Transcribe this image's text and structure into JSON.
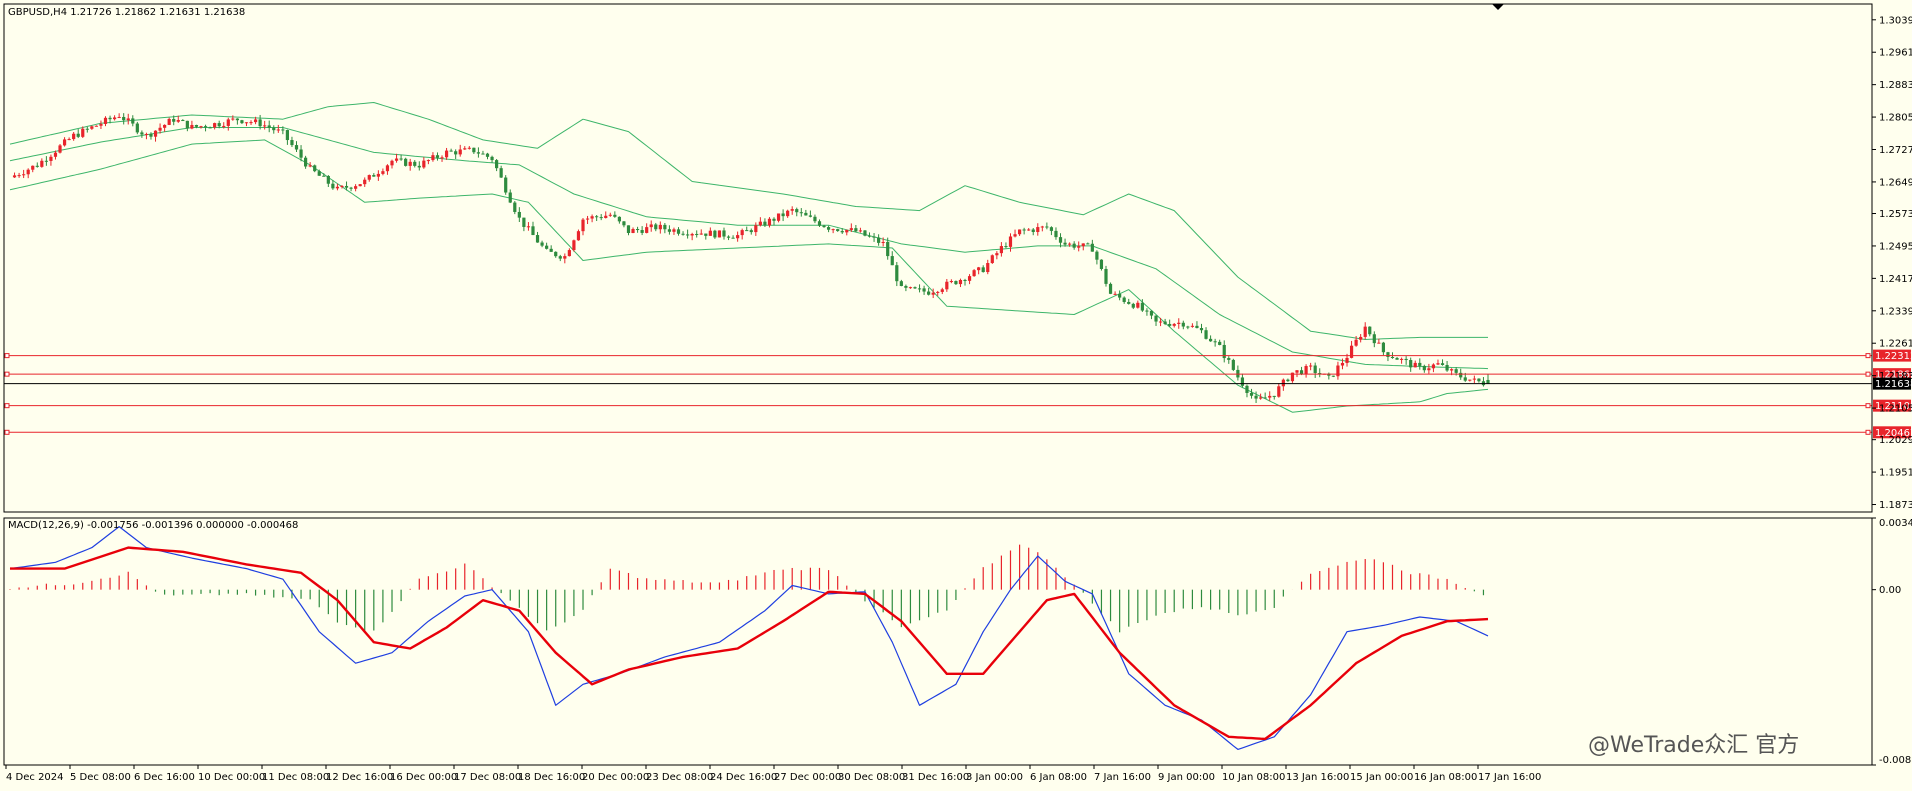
{
  "symbol_header": "GBPUSD,H4  1.21726 1.21862 1.21631 1.21638",
  "macd_header": "MACD(12,26,9) -0.001756 -0.001396 0.000000 -0.000468",
  "watermark": "@WeTrade众汇 官方",
  "colors": {
    "background": "#FFFFEE",
    "bull": "#E8242B",
    "bear": "#2E8B3E",
    "bands": "#3DB56A",
    "level": "#E8242B",
    "current": "#000000",
    "macd_line": "#1F3FE0",
    "signal_line": "#E8000A",
    "hist_pos": "#E8242B",
    "hist_neg": "#2E8B3E"
  },
  "price_axis_ticks": [
    "1.30390",
    "1.29610",
    "1.28830",
    "1.28050",
    "1.27270",
    "1.26490",
    "1.25730",
    "1.24950",
    "1.24170",
    "1.23390",
    "1.22610",
    "1.21830",
    "1.21050",
    "1.20290",
    "1.19510",
    "1.18730"
  ],
  "macd_axis_ticks": [
    "0.003409",
    "0.00",
    "-0.00834"
  ],
  "time_axis_labels": [
    "4 Dec 2024",
    "5 Dec 08:00",
    "6 Dec 16:00",
    "10 Dec 00:00",
    "11 Dec 08:00",
    "12 Dec 16:00",
    "16 Dec 00:00",
    "17 Dec 08:00",
    "18 Dec 16:00",
    "20 Dec 00:00",
    "23 Dec 08:00",
    "24 Dec 16:00",
    "27 Dec 00:00",
    "30 Dec 08:00",
    "31 Dec 16:00",
    "3 Jan 00:00",
    "6 Jan 08:00",
    "7 Jan 16:00",
    "9 Jan 00:00",
    "10 Jan 08:00",
    "13 Jan 16:00",
    "15 Jan 00:00",
    "16 Jan 08:00",
    "17 Jan 16:00"
  ],
  "level_labels": [
    "1.22312",
    "1.21866",
    "1.21108",
    "1.20467"
  ],
  "current_price_label": "1.21638",
  "chart_data": {
    "type": "candlestick",
    "symbol": "GBPUSD",
    "timeframe": "H4",
    "ohlc_last": {
      "open": 1.21726,
      "high": 1.21862,
      "low": 1.21631,
      "close": 1.21638
    },
    "ylim": [
      1.1855,
      1.3077
    ],
    "horizontal_levels": [
      1.22312,
      1.21866,
      1.21108,
      1.20467
    ],
    "current_price": 1.21638,
    "close_path": [
      [
        0,
        1.266
      ],
      [
        6,
        1.269
      ],
      [
        14,
        1.276
      ],
      [
        20,
        1.279
      ],
      [
        24,
        1.281
      ],
      [
        30,
        1.276
      ],
      [
        36,
        1.28
      ],
      [
        40,
        1.278
      ],
      [
        46,
        1.279
      ],
      [
        50,
        1.28
      ],
      [
        55,
        1.279
      ],
      [
        60,
        1.2765
      ],
      [
        66,
        1.268
      ],
      [
        72,
        1.263
      ],
      [
        78,
        1.265
      ],
      [
        84,
        1.27
      ],
      [
        90,
        1.269
      ],
      [
        96,
        1.272
      ],
      [
        102,
        1.2725
      ],
      [
        106,
        1.2705
      ],
      [
        112,
        1.256
      ],
      [
        118,
        1.248
      ],
      [
        122,
        1.247
      ],
      [
        126,
        1.256
      ],
      [
        132,
        1.257
      ],
      [
        136,
        1.253
      ],
      [
        142,
        1.254
      ],
      [
        148,
        1.253
      ],
      [
        154,
        1.2525
      ],
      [
        160,
        1.252
      ],
      [
        166,
        1.255
      ],
      [
        172,
        1.258
      ],
      [
        176,
        1.256
      ],
      [
        180,
        1.254
      ],
      [
        186,
        1.253
      ],
      [
        192,
        1.25
      ],
      [
        196,
        1.239
      ],
      [
        202,
        1.2385
      ],
      [
        208,
        1.241
      ],
      [
        214,
        1.244
      ],
      [
        218,
        1.249
      ],
      [
        222,
        1.253
      ],
      [
        228,
        1.254
      ],
      [
        232,
        1.25
      ],
      [
        238,
        1.249
      ],
      [
        242,
        1.238
      ],
      [
        248,
        1.235
      ],
      [
        252,
        1.231
      ],
      [
        258,
        1.231
      ],
      [
        262,
        1.229
      ],
      [
        266,
        1.225
      ],
      [
        270,
        1.218
      ],
      [
        274,
        1.212
      ],
      [
        278,
        1.214
      ],
      [
        282,
        1.219
      ],
      [
        286,
        1.22
      ],
      [
        290,
        1.2175
      ],
      [
        294,
        1.223
      ],
      [
        298,
        1.23
      ],
      [
        302,
        1.224
      ],
      [
        306,
        1.222
      ],
      [
        310,
        1.22
      ],
      [
        314,
        1.221
      ],
      [
        318,
        1.2185
      ],
      [
        322,
        1.217
      ],
      [
        325,
        1.21638
      ]
    ],
    "bollinger_upper_path": [
      [
        0,
        1.274
      ],
      [
        20,
        1.279
      ],
      [
        40,
        1.281
      ],
      [
        60,
        1.28
      ],
      [
        70,
        1.283
      ],
      [
        80,
        1.284
      ],
      [
        92,
        1.28
      ],
      [
        104,
        1.275
      ],
      [
        116,
        1.273
      ],
      [
        126,
        1.28
      ],
      [
        136,
        1.277
      ],
      [
        150,
        1.265
      ],
      [
        170,
        1.262
      ],
      [
        186,
        1.259
      ],
      [
        200,
        1.258
      ],
      [
        210,
        1.264
      ],
      [
        222,
        1.26
      ],
      [
        236,
        1.257
      ],
      [
        246,
        1.262
      ],
      [
        256,
        1.258
      ],
      [
        270,
        1.242
      ],
      [
        286,
        1.229
      ],
      [
        298,
        1.227
      ],
      [
        310,
        1.2275
      ],
      [
        325,
        1.2275
      ]
    ],
    "bollinger_middle_path": [
      [
        0,
        1.27
      ],
      [
        20,
        1.2745
      ],
      [
        40,
        1.278
      ],
      [
        60,
        1.278
      ],
      [
        80,
        1.272
      ],
      [
        100,
        1.27
      ],
      [
        112,
        1.269
      ],
      [
        124,
        1.262
      ],
      [
        140,
        1.2565
      ],
      [
        160,
        1.2545
      ],
      [
        180,
        1.2545
      ],
      [
        196,
        1.25
      ],
      [
        210,
        1.248
      ],
      [
        226,
        1.2495
      ],
      [
        238,
        1.2495
      ],
      [
        252,
        1.244
      ],
      [
        266,
        1.233
      ],
      [
        282,
        1.224
      ],
      [
        298,
        1.221
      ],
      [
        310,
        1.2205
      ],
      [
        325,
        1.22
      ]
    ],
    "bollinger_lower_path": [
      [
        0,
        1.263
      ],
      [
        20,
        1.268
      ],
      [
        40,
        1.274
      ],
      [
        56,
        1.275
      ],
      [
        66,
        1.269
      ],
      [
        78,
        1.26
      ],
      [
        90,
        1.261
      ],
      [
        106,
        1.262
      ],
      [
        114,
        1.26
      ],
      [
        126,
        1.246
      ],
      [
        140,
        1.248
      ],
      [
        160,
        1.249
      ],
      [
        180,
        1.25
      ],
      [
        194,
        1.249
      ],
      [
        206,
        1.235
      ],
      [
        220,
        1.234
      ],
      [
        234,
        1.233
      ],
      [
        246,
        1.239
      ],
      [
        256,
        1.229
      ],
      [
        270,
        1.216
      ],
      [
        282,
        1.2095
      ],
      [
        294,
        1.211
      ],
      [
        310,
        1.212
      ],
      [
        316,
        1.214
      ],
      [
        325,
        1.215
      ]
    ],
    "macd": {
      "params": "12,26,9",
      "values": {
        "main": -0.001756,
        "signal": -0.001396,
        "histogram": 0.0,
        "osma": -0.000468
      },
      "ylim": [
        -0.00834,
        0.003409
      ],
      "macd_line_path": [
        [
          0,
          0.001
        ],
        [
          10,
          0.0013
        ],
        [
          18,
          0.002
        ],
        [
          24,
          0.003
        ],
        [
          30,
          0.002
        ],
        [
          40,
          0.0015
        ],
        [
          52,
          0.001
        ],
        [
          60,
          0.0005
        ],
        [
          68,
          -0.002
        ],
        [
          76,
          -0.0035
        ],
        [
          84,
          -0.003
        ],
        [
          92,
          -0.0015
        ],
        [
          100,
          -0.0003
        ],
        [
          106,
          0.0
        ],
        [
          114,
          -0.002
        ],
        [
          120,
          -0.0055
        ],
        [
          126,
          -0.0045
        ],
        [
          134,
          -0.004
        ],
        [
          144,
          -0.0032
        ],
        [
          156,
          -0.0025
        ],
        [
          166,
          -0.001
        ],
        [
          172,
          0.0002
        ],
        [
          180,
          -0.0002
        ],
        [
          188,
          -0.0001
        ],
        [
          194,
          -0.0025
        ],
        [
          200,
          -0.0055
        ],
        [
          208,
          -0.0045
        ],
        [
          214,
          -0.002
        ],
        [
          220,
          0.0
        ],
        [
          226,
          0.0016
        ],
        [
          232,
          0.0004
        ],
        [
          238,
          -0.0002
        ],
        [
          246,
          -0.004
        ],
        [
          254,
          -0.0055
        ],
        [
          262,
          -0.0062
        ],
        [
          270,
          -0.0076
        ],
        [
          278,
          -0.007
        ],
        [
          286,
          -0.005
        ],
        [
          294,
          -0.002
        ],
        [
          302,
          -0.0017
        ],
        [
          310,
          -0.0013
        ],
        [
          318,
          -0.0015
        ],
        [
          325,
          -0.0022
        ]
      ],
      "signal_line_path": [
        [
          0,
          0.001
        ],
        [
          12,
          0.001
        ],
        [
          26,
          0.002
        ],
        [
          38,
          0.0018
        ],
        [
          52,
          0.0012
        ],
        [
          64,
          0.0008
        ],
        [
          72,
          -0.0005
        ],
        [
          80,
          -0.0025
        ],
        [
          88,
          -0.0028
        ],
        [
          96,
          -0.0018
        ],
        [
          104,
          -0.0005
        ],
        [
          112,
          -0.001
        ],
        [
          120,
          -0.003
        ],
        [
          128,
          -0.0045
        ],
        [
          136,
          -0.0038
        ],
        [
          148,
          -0.0032
        ],
        [
          160,
          -0.0028
        ],
        [
          170,
          -0.0015
        ],
        [
          180,
          -0.0001
        ],
        [
          188,
          -0.0002
        ],
        [
          196,
          -0.0015
        ],
        [
          206,
          -0.004
        ],
        [
          214,
          -0.004
        ],
        [
          222,
          -0.002
        ],
        [
          228,
          -0.0005
        ],
        [
          234,
          -0.0002
        ],
        [
          244,
          -0.003
        ],
        [
          256,
          -0.0055
        ],
        [
          268,
          -0.007
        ],
        [
          276,
          -0.0071
        ],
        [
          286,
          -0.0055
        ],
        [
          296,
          -0.0035
        ],
        [
          306,
          -0.0022
        ],
        [
          316,
          -0.0015
        ],
        [
          325,
          -0.0014
        ]
      ],
      "histogram_path": [
        [
          0,
          0.0001
        ],
        [
          14,
          0.0003
        ],
        [
          26,
          0.0008
        ],
        [
          30,
          0.0002
        ],
        [
          34,
          -0.0003
        ],
        [
          50,
          -0.0002
        ],
        [
          66,
          -0.0005
        ],
        [
          72,
          -0.0015
        ],
        [
          80,
          -0.002
        ],
        [
          90,
          0.0005
        ],
        [
          100,
          0.0012
        ],
        [
          110,
          -0.0005
        ],
        [
          118,
          -0.002
        ],
        [
          126,
          -0.001
        ],
        [
          132,
          0.001
        ],
        [
          140,
          0.0005
        ],
        [
          156,
          0.0003
        ],
        [
          170,
          0.001
        ],
        [
          180,
          0.001
        ],
        [
          188,
          -0.0005
        ],
        [
          196,
          -0.0018
        ],
        [
          206,
          -0.001
        ],
        [
          214,
          0.001
        ],
        [
          222,
          0.0022
        ],
        [
          228,
          0.0015
        ],
        [
          236,
          -0.0002
        ],
        [
          244,
          -0.002
        ],
        [
          252,
          -0.0012
        ],
        [
          262,
          -0.0008
        ],
        [
          270,
          -0.0012
        ],
        [
          278,
          -0.0008
        ],
        [
          286,
          0.0008
        ],
        [
          294,
          0.0013
        ],
        [
          300,
          0.0015
        ],
        [
          308,
          0.0008
        ],
        [
          316,
          0.0005
        ],
        [
          325,
          -0.0003
        ]
      ]
    }
  }
}
